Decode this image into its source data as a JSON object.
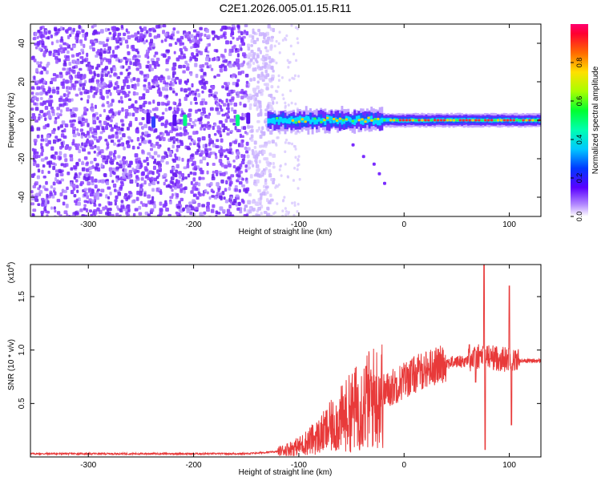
{
  "title": "C2E1.2026.005.01.15.R11",
  "colors": {
    "snr_line": "#e83a3a",
    "frame": "#000000"
  },
  "chart_data": [
    {
      "type": "heatmap",
      "title": "C2E1.2026.005.01.15.R11",
      "xlabel": "Height of straight line (km)",
      "ylabel": "Frequency (Hz)",
      "xlim": [
        -355,
        130
      ],
      "ylim": [
        -50,
        50
      ],
      "x_ticks": [
        -300,
        -200,
        -100,
        0,
        100
      ],
      "y_ticks": [
        -40,
        -20,
        0,
        20,
        40
      ],
      "colorbar": {
        "label": "Normalized spectral amplitude",
        "range": [
          0,
          1
        ],
        "ticks": [
          0.0,
          0.2,
          0.4,
          0.6,
          0.8
        ],
        "tick_labels": [
          "0.0",
          "0.2",
          "0.4",
          "0.6",
          "0.8"
        ]
      },
      "features": {
        "noise_region_x": [
          -355,
          -125
        ],
        "signal_line_frequency": 0,
        "signal_start_x": -130,
        "secondary_track": [
          [
            -50,
            -12
          ],
          [
            -40,
            -18
          ],
          [
            -30,
            -22
          ],
          [
            -25,
            -27
          ],
          [
            -20,
            -32
          ]
        ]
      }
    },
    {
      "type": "line",
      "xlabel": "Height of straight line (km)",
      "ylabel": "SNR (10 * v/v)",
      "y_scale_label": "(x10",
      "y_scale_exponent": "4",
      "xlim": [
        -355,
        130
      ],
      "ylim": [
        0,
        1.8
      ],
      "x_ticks": [
        -300,
        -200,
        -100,
        0,
        100
      ],
      "y_ticks": [
        0.5,
        1.0,
        1.5
      ],
      "y_tick_labels": [
        "0.5",
        "1.0",
        "1.5"
      ],
      "series": [
        {
          "values_description_points": [
            [
              -355,
              0.03
            ],
            [
              -150,
              0.03
            ],
            [
              -120,
              0.05
            ],
            [
              -100,
              0.1
            ],
            [
              -80,
              0.2
            ],
            [
              -60,
              0.35
            ],
            [
              -40,
              0.5
            ],
            [
              -20,
              0.6
            ],
            [
              0,
              0.72
            ],
            [
              20,
              0.82
            ],
            [
              40,
              0.88
            ],
            [
              60,
              0.9
            ],
            [
              75,
              0.95
            ],
            [
              90,
              0.92
            ],
            [
              110,
              0.9
            ],
            [
              130,
              0.9
            ]
          ],
          "spikes": [
            [
              76,
              1.8
            ],
            [
              77,
              0.07
            ],
            [
              100,
              1.6
            ],
            [
              102,
              0.3
            ],
            [
              62,
              1.05
            ],
            [
              68,
              0.7
            ]
          ]
        }
      ]
    }
  ]
}
